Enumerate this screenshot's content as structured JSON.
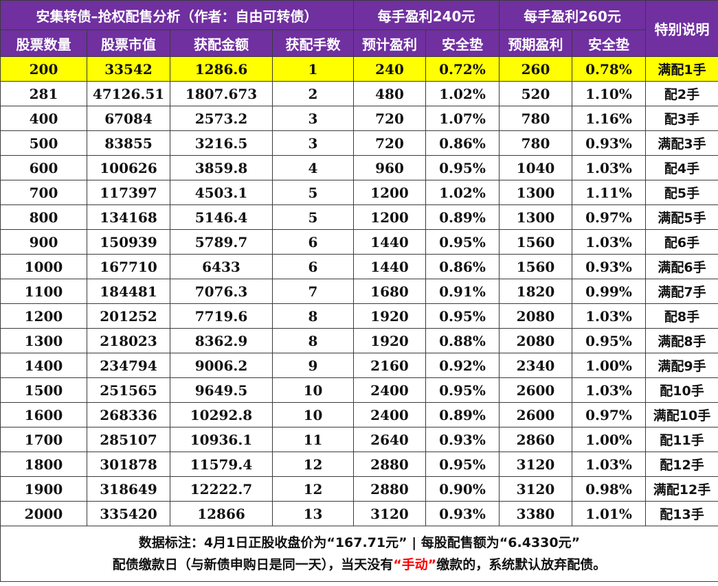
{
  "title": "安集转债–抢权配售分析（作者：自由可转债）",
  "group_240": "每手盈利240元",
  "group_260": "每手盈利260元",
  "special_note": "特别说明",
  "columns": {
    "shares": "股票数量",
    "market_value": "股票市值",
    "alloc_amount": "获配金额",
    "alloc_lots": "获配手数",
    "profit_240": "预计盈利",
    "safety_240": "安全垫",
    "profit_260": "预期盈利",
    "safety_260": "安全垫"
  },
  "colors": {
    "header_bg": "#7030a0",
    "highlight_row": "#ffff00",
    "emphasis_text": "#ff0000"
  },
  "rows": [
    [
      "200",
      "33542",
      "1286.6",
      "1",
      "240",
      "0.72%",
      "260",
      "0.78%",
      "满配1手"
    ],
    [
      "281",
      "47126.51",
      "1807.673",
      "2",
      "480",
      "1.02%",
      "520",
      "1.10%",
      "配2手"
    ],
    [
      "400",
      "67084",
      "2573.2",
      "3",
      "720",
      "1.07%",
      "780",
      "1.16%",
      "配3手"
    ],
    [
      "500",
      "83855",
      "3216.5",
      "3",
      "720",
      "0.86%",
      "780",
      "0.93%",
      "满配3手"
    ],
    [
      "600",
      "100626",
      "3859.8",
      "4",
      "960",
      "0.95%",
      "1040",
      "1.03%",
      "配4手"
    ],
    [
      "700",
      "117397",
      "4503.1",
      "5",
      "1200",
      "1.02%",
      "1300",
      "1.11%",
      "配5手"
    ],
    [
      "800",
      "134168",
      "5146.4",
      "5",
      "1200",
      "0.89%",
      "1300",
      "0.97%",
      "满配5手"
    ],
    [
      "900",
      "150939",
      "5789.7",
      "6",
      "1440",
      "0.95%",
      "1560",
      "1.03%",
      "配6手"
    ],
    [
      "1000",
      "167710",
      "6433",
      "6",
      "1440",
      "0.86%",
      "1560",
      "0.93%",
      "满配6手"
    ],
    [
      "1100",
      "184481",
      "7076.3",
      "7",
      "1680",
      "0.91%",
      "1820",
      "0.99%",
      "满配7手"
    ],
    [
      "1200",
      "201252",
      "7719.6",
      "8",
      "1920",
      "0.95%",
      "2080",
      "1.03%",
      "配8手"
    ],
    [
      "1300",
      "218023",
      "8362.9",
      "8",
      "1920",
      "0.88%",
      "2080",
      "0.95%",
      "满配8手"
    ],
    [
      "1400",
      "234794",
      "9006.2",
      "9",
      "2160",
      "0.92%",
      "2340",
      "1.00%",
      "满配9手"
    ],
    [
      "1500",
      "251565",
      "9649.5",
      "10",
      "2400",
      "0.95%",
      "2600",
      "1.03%",
      "配10手"
    ],
    [
      "1600",
      "268336",
      "10292.8",
      "10",
      "2400",
      "0.89%",
      "2600",
      "0.97%",
      "满配10手"
    ],
    [
      "1700",
      "285107",
      "10936.1",
      "11",
      "2640",
      "0.93%",
      "2860",
      "1.00%",
      "配11手"
    ],
    [
      "1800",
      "301878",
      "11579.4",
      "12",
      "2880",
      "0.95%",
      "3120",
      "1.03%",
      "配12手"
    ],
    [
      "1900",
      "318649",
      "12222.7",
      "12",
      "2880",
      "0.90%",
      "3120",
      "0.98%",
      "满配12手"
    ],
    [
      "2000",
      "335420",
      "12866",
      "13",
      "3120",
      "0.93%",
      "3380",
      "1.01%",
      "配13手"
    ]
  ],
  "footer": {
    "line1": "数据标注：4月1日正股收盘价为“167.71元” | 每股配售额为“6.4330元”",
    "line2_prefix": "配债缴款日（与新债申购日是同一天），当天没有",
    "line2_emphasis": "“手动”",
    "line2_suffix": "缴款的，系统默认放弃配债。"
  }
}
